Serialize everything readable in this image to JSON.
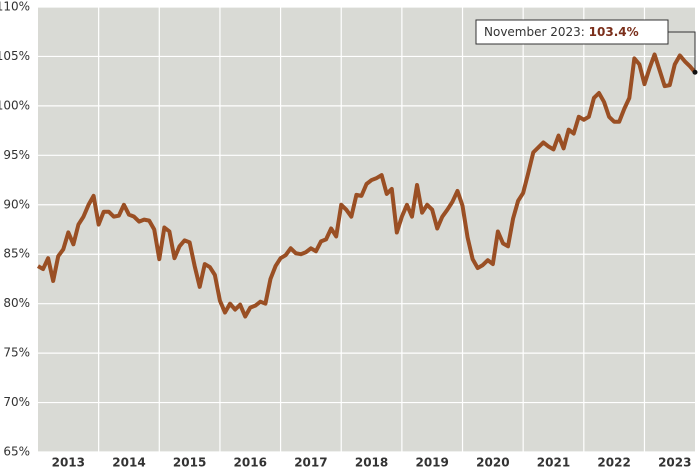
{
  "chart_data": {
    "type": "line",
    "categories": [
      null,
      null,
      null,
      null,
      null,
      null,
      "2013",
      null,
      null,
      null,
      null,
      null,
      null,
      null,
      null,
      null,
      null,
      null,
      "2014",
      null,
      null,
      null,
      null,
      null,
      null,
      null,
      null,
      null,
      null,
      null,
      "2015",
      null,
      null,
      null,
      null,
      null,
      null,
      null,
      null,
      null,
      null,
      null,
      "2016",
      null,
      null,
      null,
      null,
      null,
      null,
      null,
      null,
      null,
      null,
      null,
      "2017",
      null,
      null,
      null,
      null,
      null,
      null,
      null,
      null,
      null,
      null,
      null,
      "2018",
      null,
      null,
      null,
      null,
      null,
      null,
      null,
      null,
      null,
      null,
      null,
      "2019",
      null,
      null,
      null,
      null,
      null,
      null,
      null,
      null,
      null,
      null,
      null,
      "2020",
      null,
      null,
      null,
      null,
      null,
      null,
      null,
      null,
      null,
      null,
      null,
      "2021",
      null,
      null,
      null,
      null,
      null,
      null,
      null,
      null,
      null,
      null,
      null,
      "2022",
      null,
      null,
      null,
      null,
      null,
      null,
      null,
      null,
      null,
      null,
      null,
      "2023",
      null,
      null,
      null,
      null
    ],
    "values": [
      83.8,
      83.5,
      84.6,
      82.3,
      84.8,
      85.5,
      87.2,
      86.0,
      88.0,
      88.8,
      90.0,
      90.9,
      88.0,
      89.3,
      89.3,
      88.8,
      88.9,
      90.0,
      89.0,
      88.8,
      88.3,
      88.5,
      88.4,
      87.5,
      84.5,
      87.7,
      87.3,
      84.6,
      85.8,
      86.4,
      86.2,
      83.8,
      81.7,
      84.0,
      83.7,
      82.9,
      80.3,
      79.1,
      80.0,
      79.4,
      79.9,
      78.7,
      79.6,
      79.8,
      80.2,
      80.0,
      82.5,
      83.8,
      84.6,
      84.9,
      85.6,
      85.1,
      85.0,
      85.2,
      85.6,
      85.3,
      86.3,
      86.5,
      87.6,
      86.8,
      90.0,
      89.5,
      88.8,
      91.0,
      90.9,
      92.1,
      92.5,
      92.7,
      93.0,
      91.1,
      91.6,
      87.2,
      88.8,
      90.0,
      88.8,
      92.0,
      89.2,
      90.0,
      89.5,
      87.6,
      88.8,
      89.5,
      90.3,
      91.4,
      89.9,
      86.7,
      84.5,
      83.6,
      83.9,
      84.4,
      84.0,
      87.3,
      86.1,
      85.8,
      88.6,
      90.4,
      91.2,
      93.2,
      95.3,
      95.8,
      96.3,
      95.9,
      95.6,
      97.0,
      95.7,
      97.6,
      97.2,
      98.9,
      98.6,
      98.9,
      100.8,
      101.3,
      100.4,
      98.9,
      98.4,
      98.4,
      99.7,
      100.8,
      104.8,
      104.2,
      102.2,
      103.8,
      105.2,
      103.6,
      102.0,
      102.1,
      104.2,
      105.1,
      104.5,
      104.0,
      103.4
    ],
    "color": "#9a4f24",
    "ylim": [
      65,
      110
    ],
    "yticks": [
      {
        "value": 65,
        "label": "65%"
      },
      {
        "value": 70,
        "label": "70%"
      },
      {
        "value": 75,
        "label": "75%"
      },
      {
        "value": 80,
        "label": "80%"
      },
      {
        "value": 85,
        "label": "85%"
      },
      {
        "value": 90,
        "label": "90%"
      },
      {
        "value": 95,
        "label": "95%"
      },
      {
        "value": 100,
        "label": "100%"
      },
      {
        "value": 105,
        "label": "105%"
      },
      {
        "value": 110,
        "label": "110%"
      }
    ],
    "grid": true,
    "annotation": {
      "text": "November 2023:",
      "value_label": "103.4%"
    }
  }
}
